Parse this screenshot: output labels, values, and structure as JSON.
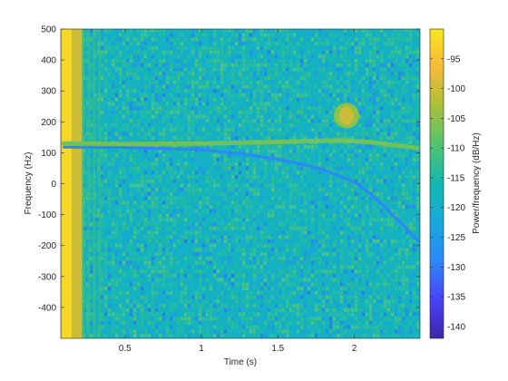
{
  "chart_data": {
    "type": "heatmap",
    "subtype": "spectrogram",
    "xlabel": "Time (s)",
    "ylabel": "Frequency (Hz)",
    "xlim": [
      0.08,
      2.43
    ],
    "ylim": [
      -500,
      500
    ],
    "x_ticks": [
      0.5,
      1,
      1.5,
      2
    ],
    "x_tick_labels": [
      "0.5",
      "1",
      "1.5",
      "2"
    ],
    "y_ticks": [
      500,
      400,
      300,
      200,
      100,
      0,
      -100,
      -200,
      -300,
      -400
    ],
    "y_tick_labels": [
      "500",
      "400",
      "300",
      "200",
      "100",
      "0",
      "-100",
      "-200",
      "-300",
      "-400"
    ],
    "colorbar": {
      "label": "Power/frequency (dB/Hz)",
      "range": [
        -142,
        -90
      ],
      "ticks": [
        -95,
        -100,
        -105,
        -110,
        -115,
        -120,
        -125,
        -130,
        -135,
        -140
      ],
      "tick_labels": [
        "-95",
        "-100",
        "-105",
        "-110",
        "-115",
        "-120",
        "-125",
        "-130",
        "-135",
        "-140"
      ]
    },
    "colormap": [
      "#3e26a8",
      "#4743f8",
      "#2c88f9",
      "#17a9dc",
      "#12b8b0",
      "#4fc36f",
      "#a8c03a",
      "#f6ba38",
      "#f9e51e"
    ],
    "background_level_db": -118,
    "features": [
      {
        "name": "broadband onset",
        "time_range": [
          0.08,
          0.22
        ],
        "level_db": -92
      },
      {
        "name": "upper component",
        "level_db": -107,
        "points": [
          [
            0.1,
            130
          ],
          [
            0.5,
            128
          ],
          [
            1.0,
            130
          ],
          [
            1.5,
            135
          ],
          [
            1.9,
            140
          ],
          [
            2.1,
            135
          ],
          [
            2.42,
            115
          ]
        ]
      },
      {
        "name": "descending component",
        "level_db": -129,
        "points": [
          [
            0.1,
            118
          ],
          [
            0.5,
            117
          ],
          [
            1.0,
            110
          ],
          [
            1.3,
            95
          ],
          [
            1.6,
            70
          ],
          [
            1.8,
            45
          ],
          [
            2.0,
            5
          ],
          [
            2.1,
            -30
          ],
          [
            2.2,
            -75
          ],
          [
            2.3,
            -125
          ],
          [
            2.42,
            -185
          ]
        ]
      },
      {
        "name": "burst",
        "time": 1.95,
        "frequency": 220,
        "level_db": -100
      }
    ]
  }
}
